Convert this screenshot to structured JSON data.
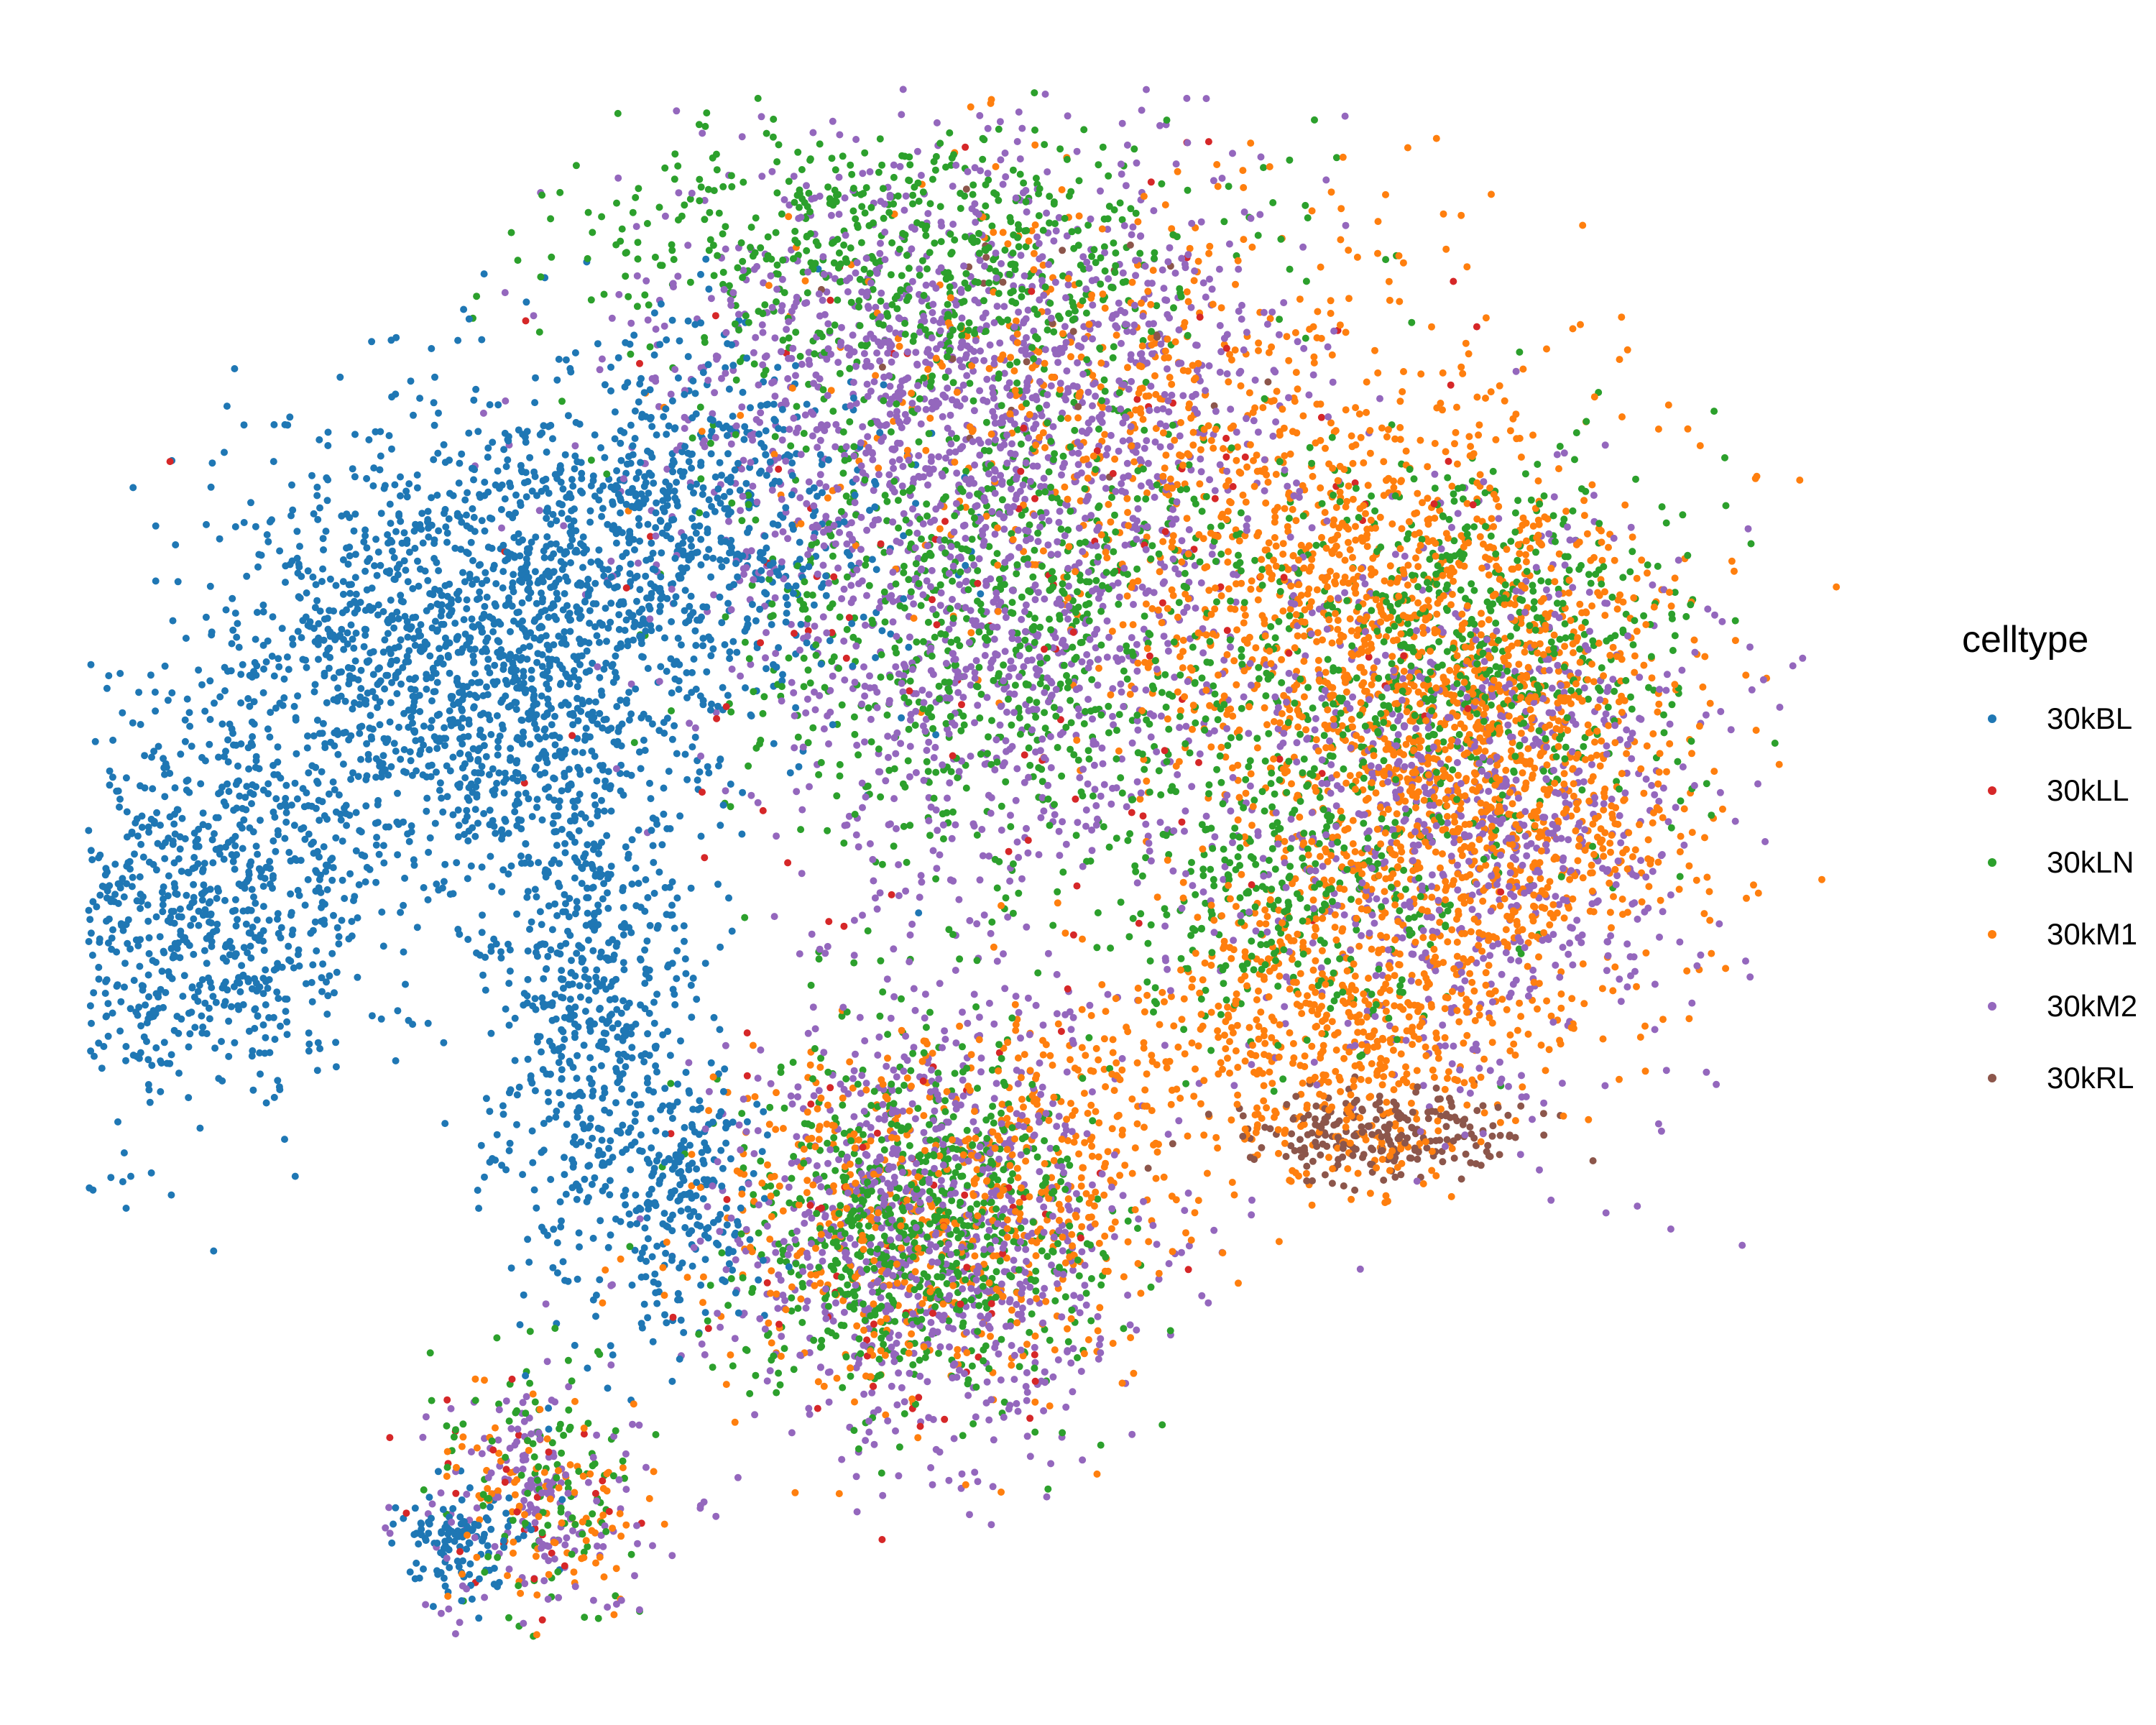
{
  "chart_data": {
    "type": "scatter",
    "title": "",
    "xlabel": "",
    "ylabel": "",
    "grid": false,
    "axes_visible": false,
    "legend_placement": "right",
    "legend": {
      "title": "celltype",
      "entries": [
        {
          "label": "30kBL",
          "color": "#1F77B4"
        },
        {
          "label": "30kLL",
          "color": "#D62728"
        },
        {
          "label": "30kLN",
          "color": "#2CA02C"
        },
        {
          "label": "30kM1",
          "color": "#FF7F0E"
        },
        {
          "label": "30kM2",
          "color": "#9467BD"
        },
        {
          "label": "30kRL",
          "color": "#8C564B"
        }
      ]
    },
    "xlim": [
      0,
      1
    ],
    "ylim": [
      0,
      1
    ],
    "series": [
      {
        "name": "30kBL",
        "color": "#1F77B4",
        "clusters": [
          {
            "cx": 0.21,
            "cy": 0.63,
            "sx": 0.07,
            "sy": 0.07,
            "n": 1500
          },
          {
            "cx": 0.34,
            "cy": 0.72,
            "sx": 0.06,
            "sy": 0.06,
            "n": 700
          },
          {
            "cx": 0.07,
            "cy": 0.47,
            "sx": 0.05,
            "sy": 0.06,
            "n": 800
          },
          {
            "cx": 0.29,
            "cy": 0.42,
            "sx": 0.03,
            "sy": 0.1,
            "n": 700
          },
          {
            "cx": 0.34,
            "cy": 0.29,
            "sx": 0.02,
            "sy": 0.04,
            "n": 200
          },
          {
            "cx": 0.21,
            "cy": 0.07,
            "sx": 0.02,
            "sy": 0.02,
            "n": 120
          }
        ]
      },
      {
        "name": "30kLL",
        "color": "#D62728",
        "clusters": [
          {
            "cx": 0.55,
            "cy": 0.7,
            "sx": 0.14,
            "sy": 0.12,
            "n": 130
          },
          {
            "cx": 0.47,
            "cy": 0.25,
            "sx": 0.06,
            "sy": 0.06,
            "n": 60
          },
          {
            "cx": 0.25,
            "cy": 0.1,
            "sx": 0.03,
            "sy": 0.03,
            "n": 30
          }
        ]
      },
      {
        "name": "30kLN",
        "color": "#2CA02C",
        "clusters": [
          {
            "cx": 0.52,
            "cy": 0.66,
            "sx": 0.08,
            "sy": 0.09,
            "n": 900
          },
          {
            "cx": 0.47,
            "cy": 0.89,
            "sx": 0.09,
            "sy": 0.04,
            "n": 600
          },
          {
            "cx": 0.78,
            "cy": 0.64,
            "sx": 0.06,
            "sy": 0.06,
            "n": 600
          },
          {
            "cx": 0.68,
            "cy": 0.49,
            "sx": 0.05,
            "sy": 0.05,
            "n": 350
          },
          {
            "cx": 0.47,
            "cy": 0.27,
            "sx": 0.05,
            "sy": 0.06,
            "n": 800
          },
          {
            "cx": 0.26,
            "cy": 0.11,
            "sx": 0.03,
            "sy": 0.04,
            "n": 120
          }
        ]
      },
      {
        "name": "30kM1",
        "color": "#FF7F0E",
        "clusters": [
          {
            "cx": 0.73,
            "cy": 0.66,
            "sx": 0.08,
            "sy": 0.07,
            "n": 1000
          },
          {
            "cx": 0.79,
            "cy": 0.54,
            "sx": 0.06,
            "sy": 0.07,
            "n": 900
          },
          {
            "cx": 0.7,
            "cy": 0.39,
            "sx": 0.05,
            "sy": 0.05,
            "n": 600
          },
          {
            "cx": 0.59,
            "cy": 0.8,
            "sx": 0.09,
            "sy": 0.07,
            "n": 450
          },
          {
            "cx": 0.47,
            "cy": 0.27,
            "sx": 0.06,
            "sy": 0.06,
            "n": 500
          },
          {
            "cx": 0.56,
            "cy": 0.34,
            "sx": 0.03,
            "sy": 0.05,
            "n": 150
          },
          {
            "cx": 0.26,
            "cy": 0.09,
            "sx": 0.03,
            "sy": 0.04,
            "n": 110
          }
        ]
      },
      {
        "name": "30kM2",
        "color": "#9467BD",
        "clusters": [
          {
            "cx": 0.5,
            "cy": 0.8,
            "sx": 0.09,
            "sy": 0.08,
            "n": 1300
          },
          {
            "cx": 0.52,
            "cy": 0.62,
            "sx": 0.07,
            "sy": 0.08,
            "n": 700
          },
          {
            "cx": 0.78,
            "cy": 0.53,
            "sx": 0.07,
            "sy": 0.09,
            "n": 900
          },
          {
            "cx": 0.48,
            "cy": 0.27,
            "sx": 0.06,
            "sy": 0.07,
            "n": 900
          },
          {
            "cx": 0.26,
            "cy": 0.1,
            "sx": 0.03,
            "sy": 0.04,
            "n": 180
          }
        ]
      },
      {
        "name": "30kRL",
        "color": "#8C564B",
        "clusters": [
          {
            "cx": 0.73,
            "cy": 0.33,
            "sx": 0.04,
            "sy": 0.014,
            "n": 240
          },
          {
            "cx": 0.55,
            "cy": 0.84,
            "sx": 0.05,
            "sy": 0.04,
            "n": 25
          }
        ]
      }
    ]
  }
}
